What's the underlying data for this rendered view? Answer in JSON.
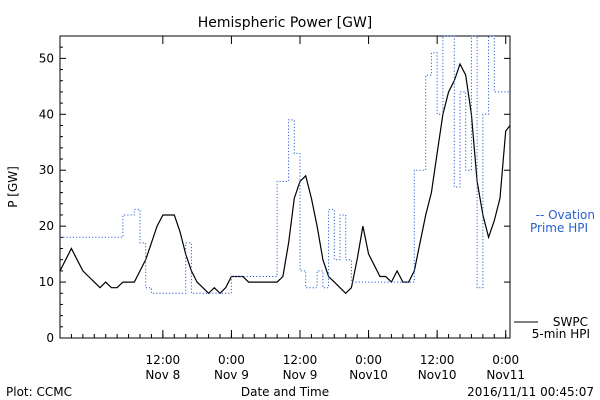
{
  "chart_data": {
    "type": "line",
    "title": "Hemispheric Power [GW]",
    "ylabel": "P [GW]",
    "xlabel": "Date and Time",
    "ylim": [
      0,
      54
    ],
    "yticks": [
      0,
      10,
      20,
      30,
      40,
      50
    ],
    "xlim": [
      "2016-11-07T18:00",
      "2016-11-11T00:45"
    ],
    "xticks": [
      {
        "x": "2016-11-08T12:00",
        "line1": "12:00",
        "line2": "Nov 8"
      },
      {
        "x": "2016-11-09T00:00",
        "line1": "0:00",
        "line2": "Nov 9"
      },
      {
        "x": "2016-11-09T12:00",
        "line1": "12:00",
        "line2": "Nov 9"
      },
      {
        "x": "2016-11-10T00:00",
        "line1": "0:00",
        "line2": "Nov10"
      },
      {
        "x": "2016-11-10T12:00",
        "line1": "12:00",
        "line2": "Nov10"
      },
      {
        "x": "2016-11-11T00:00",
        "line1": "0:00",
        "line2": "Nov11"
      }
    ],
    "series": [
      {
        "name": "SWPC 5-min HPI",
        "label_lines": [
          "SWPC",
          "5-min HPI"
        ],
        "color": "#000000",
        "style": "solid",
        "points": [
          [
            "2016-11-07T18:00",
            12
          ],
          [
            "2016-11-07T19:00",
            14
          ],
          [
            "2016-11-07T20:00",
            16
          ],
          [
            "2016-11-07T21:00",
            14
          ],
          [
            "2016-11-07T22:00",
            12
          ],
          [
            "2016-11-07T23:00",
            11
          ],
          [
            "2016-11-08T00:00",
            10
          ],
          [
            "2016-11-08T01:00",
            9
          ],
          [
            "2016-11-08T02:00",
            10
          ],
          [
            "2016-11-08T03:00",
            9
          ],
          [
            "2016-11-08T04:00",
            9
          ],
          [
            "2016-11-08T05:00",
            10
          ],
          [
            "2016-11-08T06:00",
            10
          ],
          [
            "2016-11-08T07:00",
            10
          ],
          [
            "2016-11-08T08:00",
            12
          ],
          [
            "2016-11-08T09:00",
            14
          ],
          [
            "2016-11-08T10:00",
            17
          ],
          [
            "2016-11-08T11:00",
            20
          ],
          [
            "2016-11-08T12:00",
            22
          ],
          [
            "2016-11-08T13:00",
            22
          ],
          [
            "2016-11-08T14:00",
            22
          ],
          [
            "2016-11-08T15:00",
            19
          ],
          [
            "2016-11-08T16:00",
            15
          ],
          [
            "2016-11-08T17:00",
            12
          ],
          [
            "2016-11-08T18:00",
            10
          ],
          [
            "2016-11-08T19:00",
            9
          ],
          [
            "2016-11-08T20:00",
            8
          ],
          [
            "2016-11-08T21:00",
            9
          ],
          [
            "2016-11-08T22:00",
            8
          ],
          [
            "2016-11-08T23:00",
            9
          ],
          [
            "2016-11-09T00:00",
            11
          ],
          [
            "2016-11-09T01:00",
            11
          ],
          [
            "2016-11-09T02:00",
            11
          ],
          [
            "2016-11-09T03:00",
            10
          ],
          [
            "2016-11-09T04:00",
            10
          ],
          [
            "2016-11-09T05:00",
            10
          ],
          [
            "2016-11-09T06:00",
            10
          ],
          [
            "2016-11-09T07:00",
            10
          ],
          [
            "2016-11-09T08:00",
            10
          ],
          [
            "2016-11-09T09:00",
            11
          ],
          [
            "2016-11-09T10:00",
            17
          ],
          [
            "2016-11-09T11:00",
            25
          ],
          [
            "2016-11-09T12:00",
            28
          ],
          [
            "2016-11-09T13:00",
            29
          ],
          [
            "2016-11-09T14:00",
            25
          ],
          [
            "2016-11-09T15:00",
            20
          ],
          [
            "2016-11-09T16:00",
            14
          ],
          [
            "2016-11-09T17:00",
            11
          ],
          [
            "2016-11-09T18:00",
            10
          ],
          [
            "2016-11-09T19:00",
            9
          ],
          [
            "2016-11-09T20:00",
            8
          ],
          [
            "2016-11-09T21:00",
            9
          ],
          [
            "2016-11-09T22:00",
            14
          ],
          [
            "2016-11-09T23:00",
            20
          ],
          [
            "2016-11-10T00:00",
            15
          ],
          [
            "2016-11-10T01:00",
            13
          ],
          [
            "2016-11-10T02:00",
            11
          ],
          [
            "2016-11-10T03:00",
            11
          ],
          [
            "2016-11-10T04:00",
            10
          ],
          [
            "2016-11-10T05:00",
            12
          ],
          [
            "2016-11-10T06:00",
            10
          ],
          [
            "2016-11-10T07:00",
            10
          ],
          [
            "2016-11-10T08:00",
            12
          ],
          [
            "2016-11-10T09:00",
            17
          ],
          [
            "2016-11-10T10:00",
            22
          ],
          [
            "2016-11-10T11:00",
            26
          ],
          [
            "2016-11-10T12:00",
            33
          ],
          [
            "2016-11-10T13:00",
            40
          ],
          [
            "2016-11-10T14:00",
            44
          ],
          [
            "2016-11-10T15:00",
            46
          ],
          [
            "2016-11-10T16:00",
            49
          ],
          [
            "2016-11-10T17:00",
            47
          ],
          [
            "2016-11-10T18:00",
            40
          ],
          [
            "2016-11-10T19:00",
            28
          ],
          [
            "2016-11-10T20:00",
            22
          ],
          [
            "2016-11-10T21:00",
            18
          ],
          [
            "2016-11-10T22:00",
            21
          ],
          [
            "2016-11-10T23:00",
            25
          ],
          [
            "2016-11-11T00:00",
            37
          ],
          [
            "2016-11-11T00:45",
            38
          ]
        ]
      },
      {
        "name": "Ovation Prime HPI",
        "label_lines": [
          "-- Ovation",
          "Prime HPI"
        ],
        "color": "#2a5fd0",
        "style": "dotted",
        "points": [
          [
            "2016-11-07T18:00",
            18
          ],
          [
            "2016-11-08T02:00",
            18
          ],
          [
            "2016-11-08T05:00",
            22
          ],
          [
            "2016-11-08T07:00",
            23
          ],
          [
            "2016-11-08T08:00",
            17
          ],
          [
            "2016-11-08T09:00",
            9
          ],
          [
            "2016-11-08T10:00",
            8
          ],
          [
            "2016-11-08T13:00",
            8
          ],
          [
            "2016-11-08T15:00",
            8
          ],
          [
            "2016-11-08T16:00",
            17
          ],
          [
            "2016-11-08T17:00",
            8
          ],
          [
            "2016-11-08T21:00",
            8
          ],
          [
            "2016-11-09T00:00",
            11
          ],
          [
            "2016-11-09T04:00",
            11
          ],
          [
            "2016-11-09T08:00",
            28
          ],
          [
            "2016-11-09T10:00",
            39
          ],
          [
            "2016-11-09T11:00",
            33
          ],
          [
            "2016-11-09T12:00",
            12
          ],
          [
            "2016-11-09T13:00",
            9
          ],
          [
            "2016-11-09T14:00",
            9
          ],
          [
            "2016-11-09T15:00",
            12
          ],
          [
            "2016-11-09T16:00",
            9
          ],
          [
            "2016-11-09T17:00",
            23
          ],
          [
            "2016-11-09T18:00",
            14
          ],
          [
            "2016-11-09T19:00",
            22
          ],
          [
            "2016-11-09T20:00",
            14
          ],
          [
            "2016-11-09T21:00",
            10
          ],
          [
            "2016-11-10T02:00",
            10
          ],
          [
            "2016-11-10T08:00",
            30
          ],
          [
            "2016-11-10T10:00",
            47
          ],
          [
            "2016-11-10T11:00",
            51
          ],
          [
            "2016-11-10T12:00",
            40
          ],
          [
            "2016-11-10T13:00",
            54
          ],
          [
            "2016-11-10T15:00",
            27
          ],
          [
            "2016-11-10T16:00",
            44
          ],
          [
            "2016-11-10T17:00",
            30
          ],
          [
            "2016-11-10T18:00",
            54
          ],
          [
            "2016-11-10T19:00",
            9
          ],
          [
            "2016-11-10T20:00",
            40
          ],
          [
            "2016-11-10T21:00",
            54
          ],
          [
            "2016-11-10T22:00",
            44
          ],
          [
            "2016-11-11T00:45",
            44
          ]
        ]
      }
    ],
    "grid": false,
    "legend": "right"
  },
  "footer": {
    "left": "Plot: CCMC",
    "center": "Date and Time",
    "right": "2016/11/11 00:45:07"
  }
}
